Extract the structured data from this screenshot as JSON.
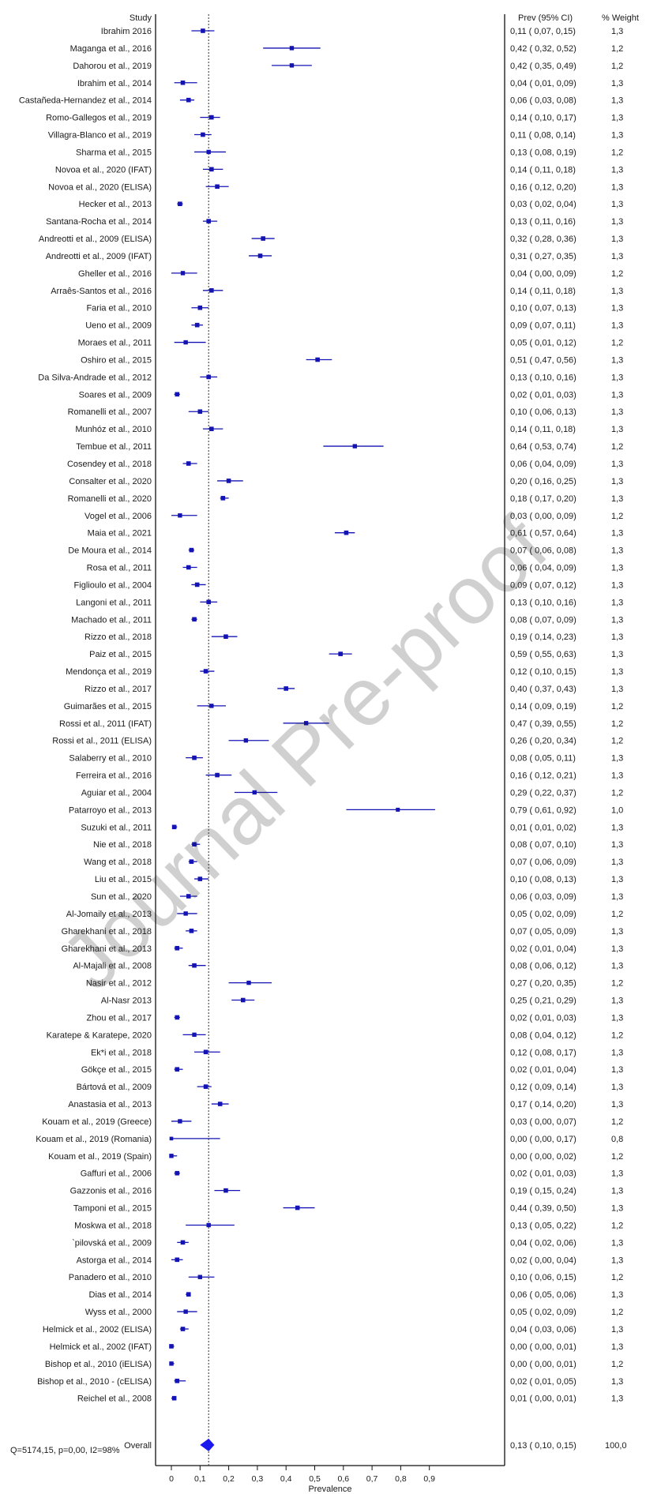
{
  "chart_data": {
    "type": "forest",
    "header": {
      "study": "Study",
      "prev": "Prev (95% CI)",
      "weight": "% Weight"
    },
    "xlabel": "Prevalence",
    "xlim": [
      0,
      0.95
    ],
    "xticks": [
      "0",
      "0,1",
      "0,2",
      "0,3",
      "0,4",
      "0,5",
      "0,6",
      "0,7",
      "0,8",
      "0,9"
    ],
    "xtick_values": [
      0,
      0.1,
      0.2,
      0.3,
      0.4,
      0.5,
      0.6,
      0.7,
      0.8,
      0.9
    ],
    "reference_line": 0.13,
    "studies": [
      {
        "name": "Ibrahim 2016",
        "est": 0.11,
        "lo": 0.07,
        "hi": 0.15,
        "weight": "1,3",
        "ci": "0,11  ( 0,07, 0,15)"
      },
      {
        "name": "Maganga et al., 2016",
        "est": 0.42,
        "lo": 0.32,
        "hi": 0.52,
        "weight": "1,2",
        "ci": "0,42  ( 0,32, 0,52)"
      },
      {
        "name": "Dahorou et al., 2019",
        "est": 0.42,
        "lo": 0.35,
        "hi": 0.49,
        "weight": "1,2",
        "ci": "0,42  ( 0,35, 0,49)"
      },
      {
        "name": "Ibrahim et al., 2014",
        "est": 0.04,
        "lo": 0.01,
        "hi": 0.09,
        "weight": "1,3",
        "ci": "0,04  ( 0,01, 0,09)"
      },
      {
        "name": "Castañeda-Hernandez et al., 2014",
        "est": 0.06,
        "lo": 0.03,
        "hi": 0.08,
        "weight": "1,3",
        "ci": "0,06  ( 0,03, 0,08)"
      },
      {
        "name": "Romo-Gallegos et al., 2019",
        "est": 0.14,
        "lo": 0.1,
        "hi": 0.17,
        "weight": "1,3",
        "ci": "0,14  ( 0,10, 0,17)"
      },
      {
        "name": "Villagra-Blanco et al., 2019",
        "est": 0.11,
        "lo": 0.08,
        "hi": 0.14,
        "weight": "1,3",
        "ci": "0,11  ( 0,08, 0,14)"
      },
      {
        "name": "Sharma et al., 2015",
        "est": 0.13,
        "lo": 0.08,
        "hi": 0.19,
        "weight": "1,2",
        "ci": "0,13  ( 0,08, 0,19)"
      },
      {
        "name": "Novoa et al., 2020 (IFAT)",
        "est": 0.14,
        "lo": 0.11,
        "hi": 0.18,
        "weight": "1,3",
        "ci": "0,14  ( 0,11, 0,18)"
      },
      {
        "name": "Novoa et al., 2020 (ELISA)",
        "est": 0.16,
        "lo": 0.12,
        "hi": 0.2,
        "weight": "1,3",
        "ci": "0,16  ( 0,12, 0,20)"
      },
      {
        "name": "Hecker et al., 2013",
        "est": 0.03,
        "lo": 0.02,
        "hi": 0.04,
        "weight": "1,3",
        "ci": "0,03  ( 0,02, 0,04)"
      },
      {
        "name": "Santana-Rocha et al., 2014",
        "est": 0.13,
        "lo": 0.11,
        "hi": 0.16,
        "weight": "1,3",
        "ci": "0,13  ( 0,11, 0,16)"
      },
      {
        "name": "Andreotti et al., 2009 (ELISA)",
        "est": 0.32,
        "lo": 0.28,
        "hi": 0.36,
        "weight": "1,3",
        "ci": "0,32  ( 0,28, 0,36)"
      },
      {
        "name": "Andreotti et al., 2009 (IFAT)",
        "est": 0.31,
        "lo": 0.27,
        "hi": 0.35,
        "weight": "1,3",
        "ci": "0,31  ( 0,27, 0,35)"
      },
      {
        "name": "Gheller et al., 2016",
        "est": 0.04,
        "lo": 0.0,
        "hi": 0.09,
        "weight": "1,2",
        "ci": "0,04  ( 0,00, 0,09)"
      },
      {
        "name": "Arraês-Santos et al., 2016",
        "est": 0.14,
        "lo": 0.11,
        "hi": 0.18,
        "weight": "1,3",
        "ci": "0,14  ( 0,11, 0,18)"
      },
      {
        "name": "Faria et al., 2010",
        "est": 0.1,
        "lo": 0.07,
        "hi": 0.13,
        "weight": "1,3",
        "ci": "0,10  ( 0,07, 0,13)"
      },
      {
        "name": "Ueno et al., 2009",
        "est": 0.09,
        "lo": 0.07,
        "hi": 0.11,
        "weight": "1,3",
        "ci": "0,09  ( 0,07, 0,11)"
      },
      {
        "name": "Moraes et al., 2011",
        "est": 0.05,
        "lo": 0.01,
        "hi": 0.12,
        "weight": "1,2",
        "ci": "0,05  ( 0,01, 0,12)"
      },
      {
        "name": "Oshiro et al., 2015",
        "est": 0.51,
        "lo": 0.47,
        "hi": 0.56,
        "weight": "1,3",
        "ci": "0,51  ( 0,47, 0,56)"
      },
      {
        "name": "Da Silva-Andrade et al., 2012",
        "est": 0.13,
        "lo": 0.1,
        "hi": 0.16,
        "weight": "1,3",
        "ci": "0,13  ( 0,10, 0,16)"
      },
      {
        "name": "Soares et al., 2009",
        "est": 0.02,
        "lo": 0.01,
        "hi": 0.03,
        "weight": "1,3",
        "ci": "0,02  ( 0,01, 0,03)"
      },
      {
        "name": "Romanelli et al., 2007",
        "est": 0.1,
        "lo": 0.06,
        "hi": 0.13,
        "weight": "1,3",
        "ci": "0,10  ( 0,06, 0,13)"
      },
      {
        "name": "Munhóz et al., 2010",
        "est": 0.14,
        "lo": 0.11,
        "hi": 0.18,
        "weight": "1,3",
        "ci": "0,14  ( 0,11, 0,18)"
      },
      {
        "name": "Tembue et al., 2011",
        "est": 0.64,
        "lo": 0.53,
        "hi": 0.74,
        "weight": "1,2",
        "ci": "0,64  ( 0,53, 0,74)"
      },
      {
        "name": "Cosendey et al., 2018",
        "est": 0.06,
        "lo": 0.04,
        "hi": 0.09,
        "weight": "1,3",
        "ci": "0,06  ( 0,04, 0,09)"
      },
      {
        "name": "Consalter et al., 2020",
        "est": 0.2,
        "lo": 0.16,
        "hi": 0.25,
        "weight": "1,3",
        "ci": "0,20  ( 0,16, 0,25)"
      },
      {
        "name": "Romanelli et al., 2020",
        "est": 0.18,
        "lo": 0.17,
        "hi": 0.2,
        "weight": "1,3",
        "ci": "0,18  ( 0,17, 0,20)"
      },
      {
        "name": "Vogel et al., 2006",
        "est": 0.03,
        "lo": 0.0,
        "hi": 0.09,
        "weight": "1,2",
        "ci": "0,03  ( 0,00, 0,09)"
      },
      {
        "name": "Maia et al., 2021",
        "est": 0.61,
        "lo": 0.57,
        "hi": 0.64,
        "weight": "1,3",
        "ci": "0,61  ( 0,57, 0,64)"
      },
      {
        "name": "De Moura et al., 2014",
        "est": 0.07,
        "lo": 0.06,
        "hi": 0.08,
        "weight": "1,3",
        "ci": "0,07  ( 0,06, 0,08)"
      },
      {
        "name": "Rosa et al., 2011",
        "est": 0.06,
        "lo": 0.04,
        "hi": 0.09,
        "weight": "1,3",
        "ci": "0,06  ( 0,04, 0,09)"
      },
      {
        "name": "Figlioulo et al., 2004",
        "est": 0.09,
        "lo": 0.07,
        "hi": 0.12,
        "weight": "1,3",
        "ci": "0,09  ( 0,07, 0,12)"
      },
      {
        "name": "Langoni et al., 2011",
        "est": 0.13,
        "lo": 0.1,
        "hi": 0.16,
        "weight": "1,3",
        "ci": "0,13  ( 0,10, 0,16)"
      },
      {
        "name": "Machado et al., 2011",
        "est": 0.08,
        "lo": 0.07,
        "hi": 0.09,
        "weight": "1,3",
        "ci": "0,08  ( 0,07, 0,09)"
      },
      {
        "name": "Rizzo et al., 2018",
        "est": 0.19,
        "lo": 0.14,
        "hi": 0.23,
        "weight": "1,3",
        "ci": "0,19  ( 0,14, 0,23)"
      },
      {
        "name": "Paiz et al., 2015",
        "est": 0.59,
        "lo": 0.55,
        "hi": 0.63,
        "weight": "1,3",
        "ci": "0,59  ( 0,55, 0,63)"
      },
      {
        "name": "Mendonça et al., 2019",
        "est": 0.12,
        "lo": 0.1,
        "hi": 0.15,
        "weight": "1,3",
        "ci": "0,12  ( 0,10, 0,15)"
      },
      {
        "name": "Rizzo et al., 2017",
        "est": 0.4,
        "lo": 0.37,
        "hi": 0.43,
        "weight": "1,3",
        "ci": "0,40  ( 0,37, 0,43)"
      },
      {
        "name": "Guimarães et al., 2015",
        "est": 0.14,
        "lo": 0.09,
        "hi": 0.19,
        "weight": "1,2",
        "ci": "0,14  ( 0,09, 0,19)"
      },
      {
        "name": "Rossi et al., 2011 (IFAT)",
        "est": 0.47,
        "lo": 0.39,
        "hi": 0.55,
        "weight": "1,2",
        "ci": "0,47  ( 0,39, 0,55)"
      },
      {
        "name": "Rossi et al., 2011 (ELISA)",
        "est": 0.26,
        "lo": 0.2,
        "hi": 0.34,
        "weight": "1,2",
        "ci": "0,26  ( 0,20, 0,34)"
      },
      {
        "name": "Salaberry et al., 2010",
        "est": 0.08,
        "lo": 0.05,
        "hi": 0.11,
        "weight": "1,3",
        "ci": "0,08  ( 0,05, 0,11)"
      },
      {
        "name": "Ferreira et al., 2016",
        "est": 0.16,
        "lo": 0.12,
        "hi": 0.21,
        "weight": "1,3",
        "ci": "0,16  ( 0,12, 0,21)"
      },
      {
        "name": "Aguiar et al., 2004",
        "est": 0.29,
        "lo": 0.22,
        "hi": 0.37,
        "weight": "1,2",
        "ci": "0,29  ( 0,22, 0,37)"
      },
      {
        "name": "Patarroyo et al., 2013",
        "est": 0.79,
        "lo": 0.61,
        "hi": 0.92,
        "weight": "1,0",
        "ci": "0,79  ( 0,61, 0,92)"
      },
      {
        "name": "Suzuki et al., 2011",
        "est": 0.01,
        "lo": 0.01,
        "hi": 0.02,
        "weight": "1,3",
        "ci": "0,01  ( 0,01, 0,02)"
      },
      {
        "name": "Nie et al., 2018",
        "est": 0.08,
        "lo": 0.07,
        "hi": 0.1,
        "weight": "1,3",
        "ci": "0,08  ( 0,07, 0,10)"
      },
      {
        "name": "Wang et al., 2018",
        "est": 0.07,
        "lo": 0.06,
        "hi": 0.09,
        "weight": "1,3",
        "ci": "0,07  ( 0,06, 0,09)"
      },
      {
        "name": "Liu et al., 2015",
        "est": 0.1,
        "lo": 0.08,
        "hi": 0.13,
        "weight": "1,3",
        "ci": "0,10  ( 0,08, 0,13)"
      },
      {
        "name": "Sun et al., 2020",
        "est": 0.06,
        "lo": 0.03,
        "hi": 0.09,
        "weight": "1,3",
        "ci": "0,06  ( 0,03, 0,09)"
      },
      {
        "name": "Al-Jomaily et al., 2013",
        "est": 0.05,
        "lo": 0.02,
        "hi": 0.09,
        "weight": "1,2",
        "ci": "0,05  ( 0,02, 0,09)"
      },
      {
        "name": "Gharekhani et al., 2018",
        "est": 0.07,
        "lo": 0.05,
        "hi": 0.09,
        "weight": "1,3",
        "ci": "0,07  ( 0,05, 0,09)"
      },
      {
        "name": "Gharekhani et al., 2013",
        "est": 0.02,
        "lo": 0.01,
        "hi": 0.04,
        "weight": "1,3",
        "ci": "0,02  ( 0,01, 0,04)"
      },
      {
        "name": "Al-Majali et al., 2008",
        "est": 0.08,
        "lo": 0.06,
        "hi": 0.12,
        "weight": "1,3",
        "ci": "0,08  ( 0,06, 0,12)"
      },
      {
        "name": "Nasir et al., 2012",
        "est": 0.27,
        "lo": 0.2,
        "hi": 0.35,
        "weight": "1,2",
        "ci": "0,27  ( 0,20, 0,35)"
      },
      {
        "name": "Al-Nasr 2013",
        "est": 0.25,
        "lo": 0.21,
        "hi": 0.29,
        "weight": "1,3",
        "ci": "0,25  ( 0,21, 0,29)"
      },
      {
        "name": "Zhou et al., 2017",
        "est": 0.02,
        "lo": 0.01,
        "hi": 0.03,
        "weight": "1,3",
        "ci": "0,02  ( 0,01, 0,03)"
      },
      {
        "name": "Karatepe & Karatepe, 2020",
        "est": 0.08,
        "lo": 0.04,
        "hi": 0.12,
        "weight": "1,2",
        "ci": "0,08  ( 0,04, 0,12)"
      },
      {
        "name": "Ek*i et al., 2018",
        "est": 0.12,
        "lo": 0.08,
        "hi": 0.17,
        "weight": "1,3",
        "ci": "0,12  ( 0,08, 0,17)"
      },
      {
        "name": "Gökçe et al., 2015",
        "est": 0.02,
        "lo": 0.01,
        "hi": 0.04,
        "weight": "1,3",
        "ci": "0,02  ( 0,01, 0,04)"
      },
      {
        "name": "Bártová et al., 2009",
        "est": 0.12,
        "lo": 0.09,
        "hi": 0.14,
        "weight": "1,3",
        "ci": "0,12  ( 0,09, 0,14)"
      },
      {
        "name": "Anastasia et al., 2013",
        "est": 0.17,
        "lo": 0.14,
        "hi": 0.2,
        "weight": "1,3",
        "ci": "0,17  ( 0,14, 0,20)"
      },
      {
        "name": "Kouam et al., 2019 (Greece)",
        "est": 0.03,
        "lo": 0.0,
        "hi": 0.07,
        "weight": "1,2",
        "ci": "0,03  ( 0,00, 0,07)"
      },
      {
        "name": "Kouam et al., 2019 (Romania)",
        "est": 0.0,
        "lo": 0.0,
        "hi": 0.17,
        "weight": "0,8",
        "ci": "0,00  ( 0,00, 0,17)"
      },
      {
        "name": "Kouam et al., 2019 (Spain)",
        "est": 0.0,
        "lo": 0.0,
        "hi": 0.02,
        "weight": "1,2",
        "ci": "0,00  ( 0,00, 0,02)"
      },
      {
        "name": "Gaffuri et al., 2006",
        "est": 0.02,
        "lo": 0.01,
        "hi": 0.03,
        "weight": "1,3",
        "ci": "0,02  ( 0,01, 0,03)"
      },
      {
        "name": "Gazzonis et al., 2016",
        "est": 0.19,
        "lo": 0.15,
        "hi": 0.24,
        "weight": "1,3",
        "ci": "0,19  ( 0,15, 0,24)"
      },
      {
        "name": "Tamponi et al., 2015",
        "est": 0.44,
        "lo": 0.39,
        "hi": 0.5,
        "weight": "1,3",
        "ci": "0,44  ( 0,39, 0,50)"
      },
      {
        "name": "Moskwa et al., 2018",
        "est": 0.13,
        "lo": 0.05,
        "hi": 0.22,
        "weight": "1,2",
        "ci": "0,13  ( 0,05, 0,22)"
      },
      {
        "name": "`pilovská et al., 2009",
        "est": 0.04,
        "lo": 0.02,
        "hi": 0.06,
        "weight": "1,3",
        "ci": "0,04  ( 0,02, 0,06)"
      },
      {
        "name": "Astorga et al., 2014",
        "est": 0.02,
        "lo": 0.0,
        "hi": 0.04,
        "weight": "1,3",
        "ci": "0,02  ( 0,00, 0,04)"
      },
      {
        "name": "Panadero et al., 2010",
        "est": 0.1,
        "lo": 0.06,
        "hi": 0.15,
        "weight": "1,2",
        "ci": "0,10  ( 0,06, 0,15)"
      },
      {
        "name": "Dias et al., 2014",
        "est": 0.06,
        "lo": 0.05,
        "hi": 0.06,
        "weight": "1,3",
        "ci": "0,06  ( 0,05, 0,06)"
      },
      {
        "name": "Wyss et al., 2000",
        "est": 0.05,
        "lo": 0.02,
        "hi": 0.09,
        "weight": "1,2",
        "ci": "0,05  ( 0,02, 0,09)"
      },
      {
        "name": "Helmick et al., 2002 (ELISA)",
        "est": 0.04,
        "lo": 0.03,
        "hi": 0.06,
        "weight": "1,3",
        "ci": "0,04  ( 0,03, 0,06)"
      },
      {
        "name": "Helmick et al., 2002 (IFAT)",
        "est": 0.0,
        "lo": 0.0,
        "hi": 0.01,
        "weight": "1,3",
        "ci": "0,00  ( 0,00, 0,01)"
      },
      {
        "name": "Bishop et al., 2010 (iELISA)",
        "est": 0.0,
        "lo": 0.0,
        "hi": 0.01,
        "weight": "1,2",
        "ci": "0,00  ( 0,00, 0,01)"
      },
      {
        "name": "Bishop et al., 2010 - (cELISA)",
        "est": 0.02,
        "lo": 0.01,
        "hi": 0.05,
        "weight": "1,3",
        "ci": "0,02  ( 0,01, 0,05)"
      },
      {
        "name": "Reichel et al., 2008",
        "est": 0.01,
        "lo": 0.0,
        "hi": 0.01,
        "weight": "1,3",
        "ci": "0,01  ( 0,00, 0,01)"
      }
    ],
    "overall": {
      "name": "Overall",
      "est": 0.13,
      "lo": 0.1,
      "hi": 0.15,
      "weight": "100,0",
      "ci": "0,13  ( 0,10, 0,15)"
    },
    "heterogeneity": "Q=5174,15, p=0,00, I2=98%",
    "watermark": "Journal Pre-proof",
    "colors": {
      "marker": "#1414b4",
      "diamond": "#1a1aee",
      "text": "#1a1a1a",
      "watermark": "#9a9a9a"
    }
  }
}
